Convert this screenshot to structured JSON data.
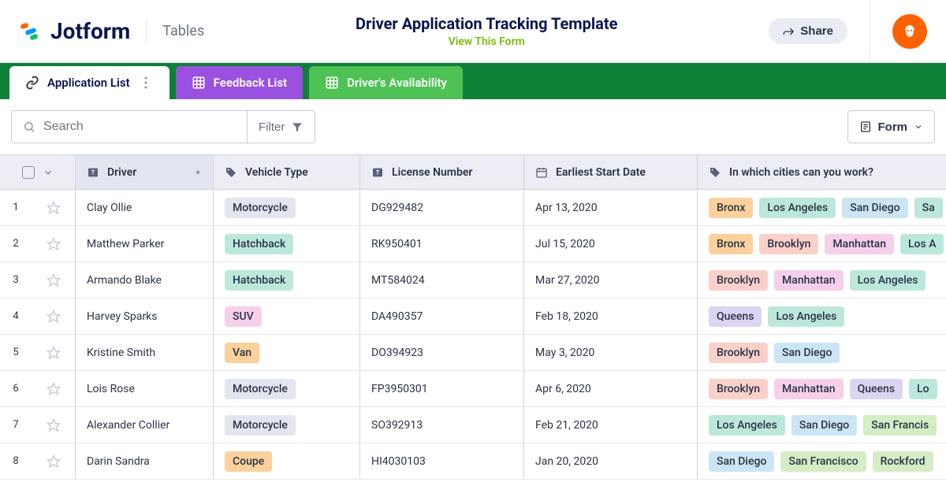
{
  "header": {
    "brand": "Jotform",
    "product": "Tables",
    "title": "Driver Application Tracking Template",
    "view_link": "View This Form",
    "share_label": "Share"
  },
  "tabs": [
    {
      "label": "Application List",
      "style": "active",
      "icon": "link"
    },
    {
      "label": "Feedback List",
      "style": "purple",
      "icon": "grid"
    },
    {
      "label": "Driver's Availability",
      "style": "green",
      "icon": "grid"
    }
  ],
  "toolbar": {
    "search_placeholder": "Search",
    "filter_label": "Filter",
    "form_label": "Form"
  },
  "columns": {
    "driver": "Driver",
    "vehicle": "Vehicle Type",
    "license": "License Number",
    "date": "Earliest Start Date",
    "cities": "In which cities can you work?"
  },
  "chip_colors": {
    "Motorcycle": "#e3e5f0",
    "Hatchback": "#bce8dc",
    "SUV": "#f6d0ea",
    "Van": "#fcd19c",
    "Coupe": "#fcd19c",
    "Bronx": "#fcd19c",
    "Los Angeles": "#bce8dc",
    "San Diego": "#cbe5f5",
    "Brooklyn": "#f9d0ca",
    "Manhattan": "#f6d0ea",
    "Queens": "#dcd4f2",
    "San Francisco": "#d4edc4",
    "Rockford": "#d4edc4",
    "Los A": "#bce8dc",
    "Lo": "#bce8dc",
    "San Francis": "#d4edc4",
    "Sa": "#bce8dc"
  },
  "rows": [
    {
      "n": "1",
      "driver": "Clay Ollie",
      "vehicle": "Motorcycle",
      "license": "DG929482",
      "date": "Apr 13, 2020",
      "cities": [
        "Bronx",
        "Los Angeles",
        "San Diego",
        "Sa"
      ]
    },
    {
      "n": "2",
      "driver": "Matthew Parker",
      "vehicle": "Hatchback",
      "license": "RK950401",
      "date": "Jul 15, 2020",
      "cities": [
        "Bronx",
        "Brooklyn",
        "Manhattan",
        "Los A"
      ]
    },
    {
      "n": "3",
      "driver": "Armando Blake",
      "vehicle": "Hatchback",
      "license": "MT584024",
      "date": "Mar 27, 2020",
      "cities": [
        "Brooklyn",
        "Manhattan",
        "Los Angeles"
      ]
    },
    {
      "n": "4",
      "driver": "Harvey Sparks",
      "vehicle": "SUV",
      "license": "DA490357",
      "date": "Feb 18, 2020",
      "cities": [
        "Queens",
        "Los Angeles"
      ]
    },
    {
      "n": "5",
      "driver": "Kristine Smith",
      "vehicle": "Van",
      "license": "DO394923",
      "date": "May 3, 2020",
      "cities": [
        "Brooklyn",
        "San Diego"
      ]
    },
    {
      "n": "6",
      "driver": "Lois Rose",
      "vehicle": "Motorcycle",
      "license": "FP3950301",
      "date": "Apr 6, 2020",
      "cities": [
        "Brooklyn",
        "Manhattan",
        "Queens",
        "Lo"
      ]
    },
    {
      "n": "7",
      "driver": "Alexander Collier",
      "vehicle": "Motorcycle",
      "license": "SO392913",
      "date": "Feb 21, 2020",
      "cities": [
        "Los Angeles",
        "San Diego",
        "San Francis"
      ]
    },
    {
      "n": "8",
      "driver": "Darin Sandra",
      "vehicle": "Coupe",
      "license": "HI4030103",
      "date": "Jan 20, 2020",
      "cities": [
        "San Diego",
        "San Francisco",
        "Rockford"
      ]
    }
  ],
  "colors": {
    "brand_navy": "#0a1551",
    "green_bar": "#0f8037",
    "header_bg": "#ecedf5",
    "accent_orange": "#ff6100"
  }
}
